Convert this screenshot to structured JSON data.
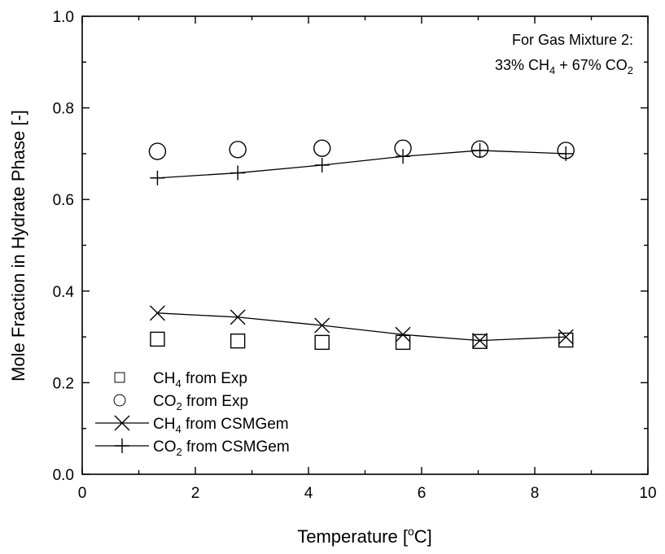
{
  "chart_data": {
    "type": "scatter",
    "xlabel": "Temperature [",
    "xlabel_sup": "o",
    "xlabel_tail": "C]",
    "ylabel": "Mole Fraction in Hydrate Phase [-]",
    "xlim": [
      0,
      10
    ],
    "ylim": [
      0.0,
      1.0
    ],
    "x_ticks": [
      "0",
      "2",
      "4",
      "6",
      "8",
      "10"
    ],
    "y_ticks": [
      "0.0",
      "0.2",
      "0.4",
      "0.6",
      "0.8",
      "1.0"
    ],
    "grid": false,
    "legend_position": "bottom-left",
    "annotation": {
      "line1": "For Gas Mixture 2:",
      "line2_a": "33% CH",
      "line2_sub1": "4",
      "line2_b": " + 67% CO",
      "line2_sub2": "2"
    },
    "series": [
      {
        "label_main": "CH",
        "label_sub": "4",
        "label_tail": " from Exp",
        "marker": "square",
        "line": false,
        "x": [
          1.33,
          2.75,
          4.24,
          5.67,
          7.03,
          8.55
        ],
        "y": [
          0.295,
          0.291,
          0.288,
          0.288,
          0.29,
          0.293
        ]
      },
      {
        "label_main": "CO",
        "label_sub": "2",
        "label_tail": " from Exp",
        "marker": "circle",
        "line": false,
        "x": [
          1.33,
          2.75,
          4.24,
          5.67,
          7.03,
          8.55
        ],
        "y": [
          0.705,
          0.709,
          0.712,
          0.712,
          0.71,
          0.707
        ]
      },
      {
        "label_main": "CH",
        "label_sub": "4",
        "label_tail": " from CSMGem",
        "marker": "x",
        "line": true,
        "x": [
          1.33,
          2.75,
          4.24,
          5.67,
          7.03,
          8.55
        ],
        "y": [
          0.352,
          0.343,
          0.325,
          0.305,
          0.292,
          0.3
        ]
      },
      {
        "label_main": "CO",
        "label_sub": "2",
        "label_tail": " from CSMGem",
        "marker": "plus",
        "line": true,
        "x": [
          1.33,
          2.75,
          4.24,
          5.67,
          7.03,
          8.55
        ],
        "y": [
          0.647,
          0.658,
          0.675,
          0.694,
          0.707,
          0.7
        ]
      }
    ]
  }
}
